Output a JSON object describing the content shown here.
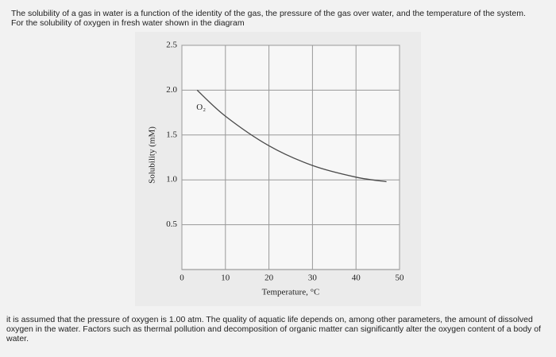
{
  "intro_text": "The solubility of a gas in water is a function of the identity of the gas, the pressure of the gas over water, and the temperature of the system. For the solubility of oxygen in fresh water shown in the diagram",
  "chart_data": {
    "type": "line",
    "x_label": "Temperature, °C",
    "y_label": "Solubility (mM)",
    "x": [
      3.5,
      10,
      20,
      30,
      40,
      47
    ],
    "series": [
      {
        "name": "O₂",
        "color": "#4a4a4a",
        "values": [
          2.0,
          1.71,
          1.38,
          1.16,
          1.03,
          0.98
        ]
      }
    ],
    "xlim": [
      0,
      50
    ],
    "xticks": [
      0,
      10,
      20,
      30,
      40,
      50
    ],
    "ylim": [
      0,
      2.5
    ],
    "yticks": [
      0.5,
      {
        "value": 1,
        "label": "1.0"
      },
      1.5,
      {
        "value": 2,
        "label": "2.0"
      },
      2.5
    ],
    "grid": true
  },
  "outro_text": "it is assumed that the pressure of oxygen is 1.00 atm. The quality of aquatic life depends on, among other parameters, the amount of dissolved oxygen in the water. Factors such as thermal pollution and decomposition of organic matter can significantly alter the oxygen content of a body of water."
}
